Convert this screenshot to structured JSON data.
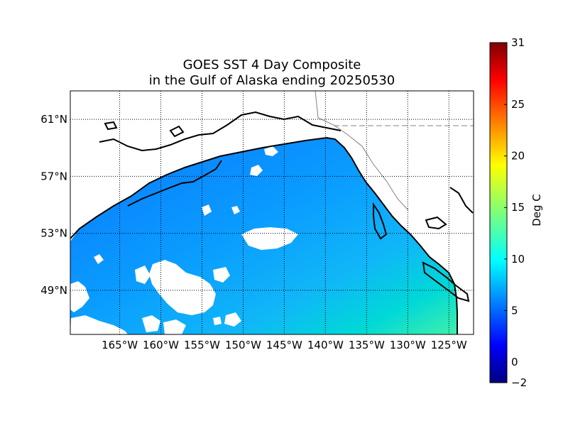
{
  "title": {
    "line1": "GOES SST 4 Day Composite",
    "line2": "in the Gulf of Alaska ending 20250530"
  },
  "map": {
    "lon_range": [
      -171,
      -122
    ],
    "lat_range": [
      45.9,
      63.0
    ],
    "lon_ticks": [
      {
        "value": -165,
        "label": "165°W"
      },
      {
        "value": -160,
        "label": "160°W"
      },
      {
        "value": -155,
        "label": "155°W"
      },
      {
        "value": -150,
        "label": "150°W"
      },
      {
        "value": -145,
        "label": "145°W"
      },
      {
        "value": -140,
        "label": "140°W"
      },
      {
        "value": -135,
        "label": "135°W"
      },
      {
        "value": -130,
        "label": "130°W"
      },
      {
        "value": -125,
        "label": "125°W"
      }
    ],
    "lat_ticks": [
      {
        "value": 61,
        "label": "61°N"
      },
      {
        "value": 57,
        "label": "57°N"
      },
      {
        "value": 53,
        "label": "53°N"
      },
      {
        "value": 49,
        "label": "49°N"
      }
    ],
    "grid": "dotted",
    "ocean_color_gulf": "#0a9cff",
    "ocean_color_south": "#00e0d0",
    "land_color": "#ffffff",
    "coast_color": "#000000"
  },
  "colorbar": {
    "label": "Deg C",
    "min": -2,
    "max": 31,
    "colormap": "jet",
    "ticks": [
      {
        "value": -2,
        "label": "−2"
      },
      {
        "value": 0,
        "label": "0"
      },
      {
        "value": 5,
        "label": "5"
      },
      {
        "value": 10,
        "label": "10"
      },
      {
        "value": 15,
        "label": "15"
      },
      {
        "value": 20,
        "label": "20"
      },
      {
        "value": 25,
        "label": "25"
      },
      {
        "value": 31,
        "label": "31"
      }
    ]
  }
}
